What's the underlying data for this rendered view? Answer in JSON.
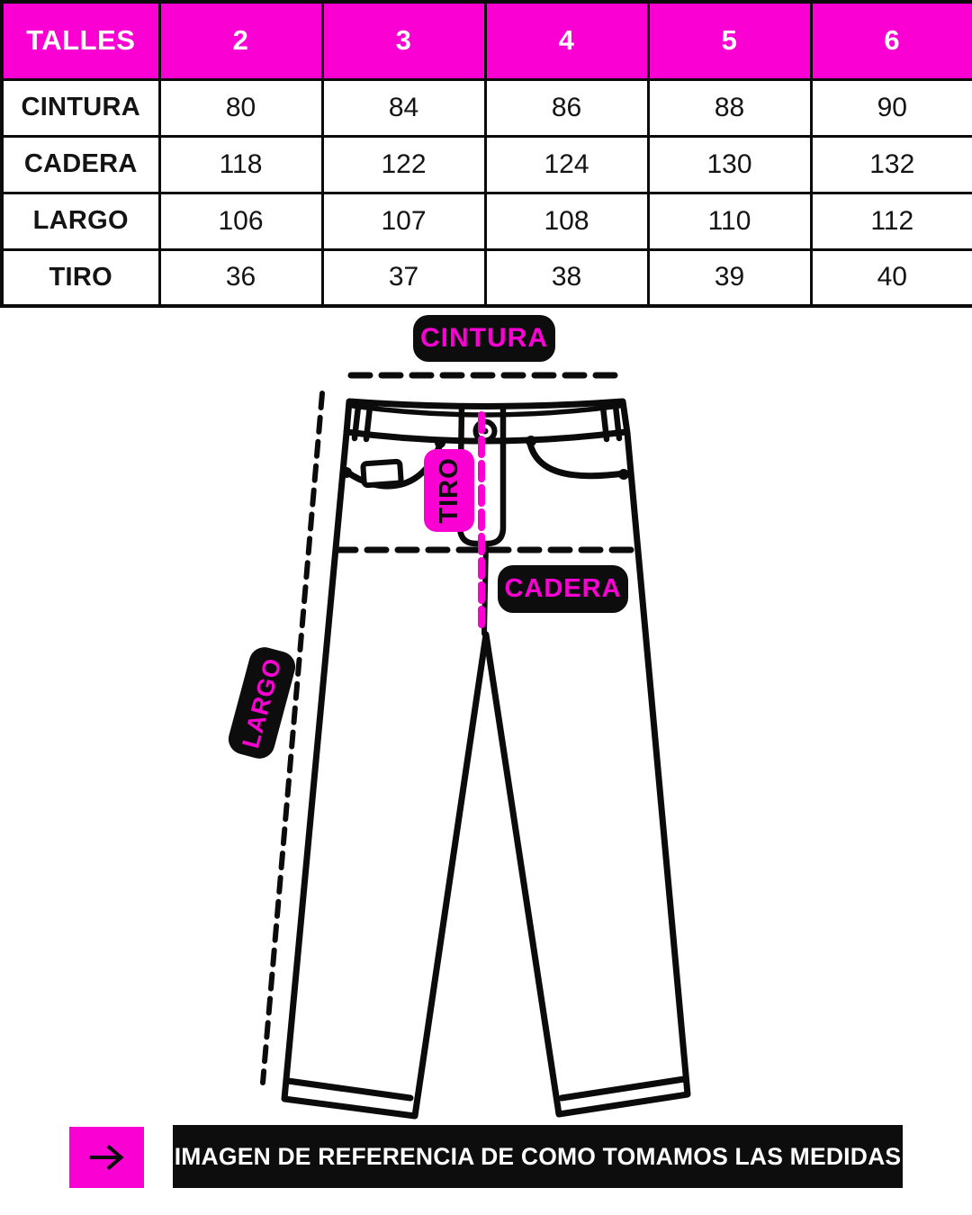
{
  "colors": {
    "magenta": "#FA00D2",
    "ink": "#0B0B0B",
    "white": "#FFFFFF"
  },
  "size_table": {
    "header_row": [
      "TALLES",
      "2",
      "3",
      "4",
      "5",
      "6"
    ],
    "rows": [
      {
        "label": "CINTURA",
        "values": [
          "80",
          "84",
          "86",
          "88",
          "90"
        ]
      },
      {
        "label": "CADERA",
        "values": [
          "118",
          "122",
          "124",
          "130",
          "132"
        ]
      },
      {
        "label": "LARGO",
        "values": [
          "106",
          "107",
          "108",
          "110",
          "112"
        ]
      },
      {
        "label": "TIRO",
        "values": [
          "36",
          "37",
          "38",
          "39",
          "40"
        ]
      }
    ]
  },
  "diagram": {
    "waist_label": "CINTURA",
    "rise_label": "TIRO",
    "hip_label": "CADERA",
    "length_label": "LARGO"
  },
  "footer": {
    "arrow_icon": "arrow-right",
    "note": "IMAGEN DE REFERENCIA DE COMO TOMAMOS LAS MEDIDAS"
  }
}
